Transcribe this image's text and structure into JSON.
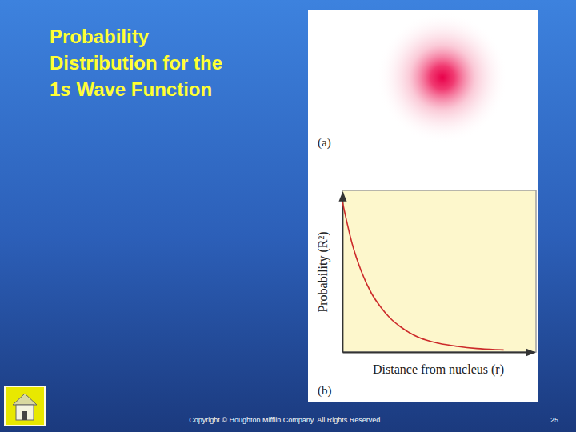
{
  "slide": {
    "title": [
      "Probability",
      "Distribution for the",
      "1s Wave Function"
    ],
    "panel_labels": [
      "(a)",
      "(b)"
    ],
    "footer": "Copyright © Houghton Mifflin Company. All Rights Reserved.",
    "page": 25
  },
  "chart_data": {
    "type": "line",
    "xlabel": "Distance from nucleus (r)",
    "ylabel": "Probability (R²)",
    "x": [
      0,
      0.5,
      1,
      1.5,
      2,
      2.5,
      3,
      3.5,
      4,
      5,
      6,
      7,
      8,
      8.4
    ],
    "values": [
      0.94,
      0.68,
      0.5,
      0.37,
      0.28,
      0.21,
      0.16,
      0.12,
      0.09,
      0.055,
      0.035,
      0.022,
      0.015,
      0.013
    ],
    "color": "#cc2a2a",
    "xlim": [
      0,
      10
    ],
    "ylim": [
      0,
      1
    ],
    "tick_labels": false,
    "grid": false
  }
}
